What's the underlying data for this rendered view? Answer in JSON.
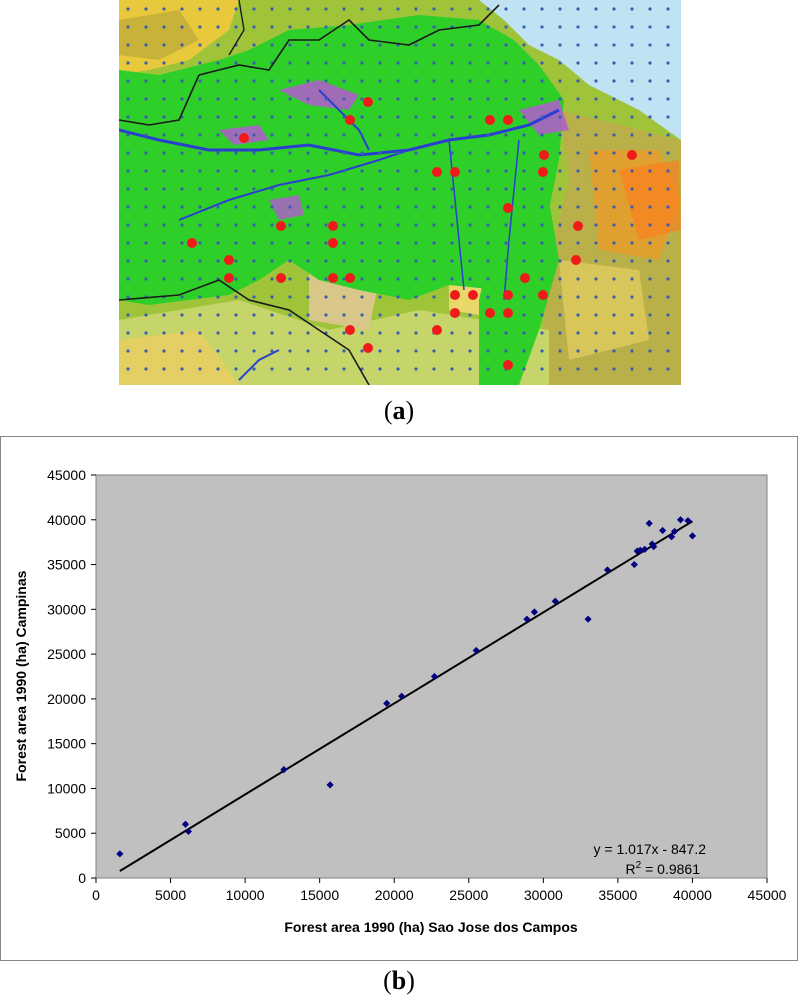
{
  "figure": {
    "panel_a_label": "a",
    "panel_b_label": "b",
    "colors": {
      "map_forest": "#2fcf2a",
      "map_sea": "#bfe3f2",
      "map_site": "#f11a1a",
      "map_grid_dot": "#3a5fb0",
      "map_river": "#2a3fd0",
      "plot_background": "#c0c0c0",
      "marker": "#000080",
      "trendline": "#000000"
    }
  },
  "map": {
    "site_marker": "red-dot",
    "grid_marker": "blue-dot"
  },
  "chart_data": {
    "type": "scatter",
    "xlabel": "Forest area 1990 (ha) Sao Jose dos Campos",
    "ylabel": "Forest area 1990 (ha) Campinas",
    "xlim": [
      0,
      45000
    ],
    "ylim": [
      0,
      45000
    ],
    "xticks": [
      "0",
      "5000",
      "10000",
      "15000",
      "20000",
      "25000",
      "30000",
      "35000",
      "40000",
      "45000"
    ],
    "yticks": [
      "0",
      "5000",
      "10000",
      "15000",
      "20000",
      "25000",
      "30000",
      "35000",
      "40000",
      "45000"
    ],
    "grid": false,
    "legend": "none",
    "points": [
      {
        "x": 1600,
        "y": 2700
      },
      {
        "x": 6000,
        "y": 6000
      },
      {
        "x": 6200,
        "y": 5200
      },
      {
        "x": 12600,
        "y": 12100
      },
      {
        "x": 15700,
        "y": 10400
      },
      {
        "x": 19500,
        "y": 19500
      },
      {
        "x": 20500,
        "y": 20300
      },
      {
        "x": 22700,
        "y": 22500
      },
      {
        "x": 25500,
        "y": 25400
      },
      {
        "x": 28900,
        "y": 28900
      },
      {
        "x": 29400,
        "y": 29700
      },
      {
        "x": 30800,
        "y": 30900
      },
      {
        "x": 33000,
        "y": 28900
      },
      {
        "x": 34300,
        "y": 34400
      },
      {
        "x": 36100,
        "y": 35000
      },
      {
        "x": 36300,
        "y": 36500
      },
      {
        "x": 36500,
        "y": 36600
      },
      {
        "x": 36800,
        "y": 36700
      },
      {
        "x": 37100,
        "y": 39600
      },
      {
        "x": 37300,
        "y": 37300
      },
      {
        "x": 37400,
        "y": 37000
      },
      {
        "x": 38000,
        "y": 38800
      },
      {
        "x": 38600,
        "y": 38100
      },
      {
        "x": 38800,
        "y": 38700
      },
      {
        "x": 39200,
        "y": 40000
      },
      {
        "x": 39700,
        "y": 39900
      },
      {
        "x": 40000,
        "y": 38200
      }
    ],
    "trendline": {
      "slope": 1.017,
      "intercept": -847.2,
      "x_range": [
        1600,
        40000
      ]
    },
    "annotations": {
      "equation": "y = 1.017x - 847.2",
      "r2_prefix": "R",
      "r2_sup": "2",
      "r2_suffix": " = 0.9861"
    }
  }
}
